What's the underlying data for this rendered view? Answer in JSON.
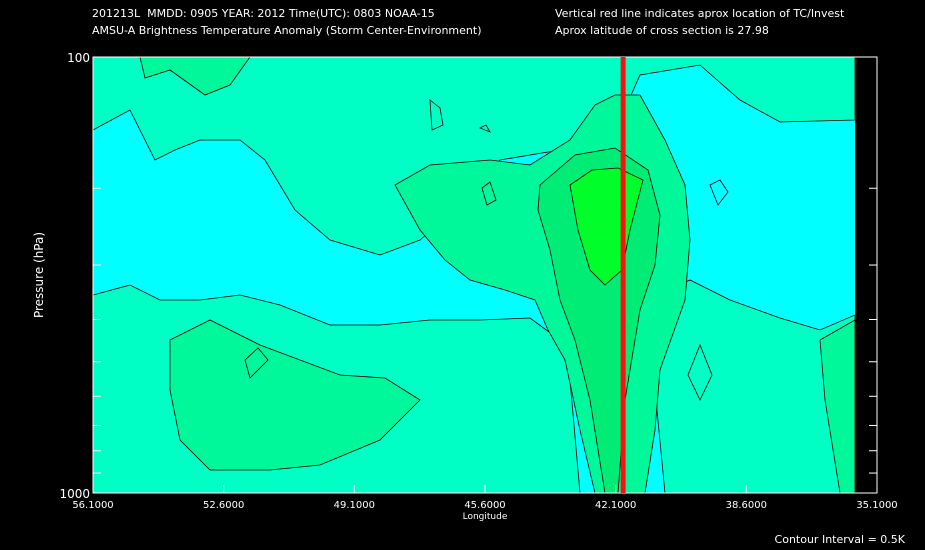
{
  "header": {
    "line1": "201213L  MMDD: 0905 YEAR: 2012 Time(UTC): 0803 NOAA-15",
    "line2": "AMSU-A Brightness Temperature Anomaly (Storm Center-Environment)",
    "line3": "Vertical red line indicates aprox location of TC/Invest",
    "line4": "Aprox latitude of cross section is 27.98"
  },
  "footer": {
    "contour_interval": "Contour Interval = 0.5K"
  },
  "colors": {
    "background": "#000000",
    "cyan": "#00ffff",
    "aqua": "#00ffc4",
    "light_green": "#00f79a",
    "green": "#00ec74",
    "bright_green": "#00ff2a",
    "red_line": "#ff1010"
  },
  "chart_data": {
    "type": "contour",
    "xlabel": "Longitude",
    "ylabel": "Pressure (hPa)",
    "x_ticks": [
      "56.1000",
      "52.6000",
      "49.1000",
      "45.6000",
      "42.1000",
      "38.6000",
      "35.1000"
    ],
    "y_ticks": [
      "100",
      "1000"
    ],
    "xlim": [
      56.1,
      35.1
    ],
    "ylim": [
      1000,
      100
    ],
    "y_scale": "log",
    "storm_longitude": 41.9,
    "contour_interval_K": 0.5
  }
}
